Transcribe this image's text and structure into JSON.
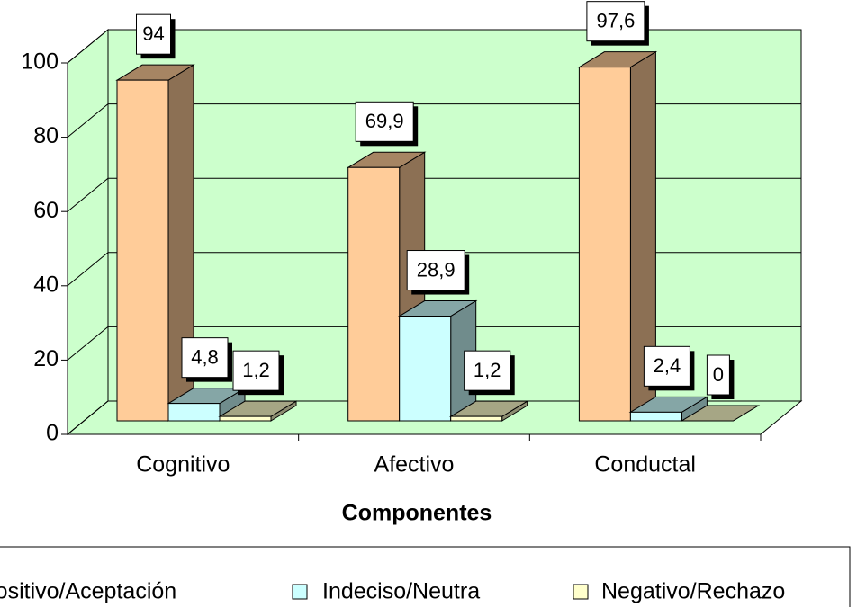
{
  "chart_data": {
    "type": "bar3d",
    "xlabel": "Componentes",
    "categories": [
      "Cognitivo",
      "Afectivo",
      "Conductal"
    ],
    "series": [
      {
        "name": "Positivo/Aceptación",
        "color": "#ffcc99",
        "values": [
          94,
          69.9,
          97.6
        ],
        "value_labels": [
          "94",
          "69,9",
          "97,6"
        ]
      },
      {
        "name": "Indeciso/Neutra",
        "color": "#ccffff",
        "values": [
          4.8,
          28.9,
          2.4
        ],
        "value_labels": [
          "4,8",
          "28,9",
          "2,4"
        ]
      },
      {
        "name": "Negativo/Rechazo",
        "color": "#ffffcc",
        "values": [
          1.2,
          1.2,
          0
        ],
        "value_labels": [
          "1,2",
          "1,2",
          "0"
        ]
      }
    ],
    "ylim": [
      0,
      100
    ],
    "yticks": [
      0,
      20,
      40,
      60,
      80,
      100
    ],
    "grid": true,
    "wall_color": "#ccffcc",
    "legend": "bottom"
  }
}
